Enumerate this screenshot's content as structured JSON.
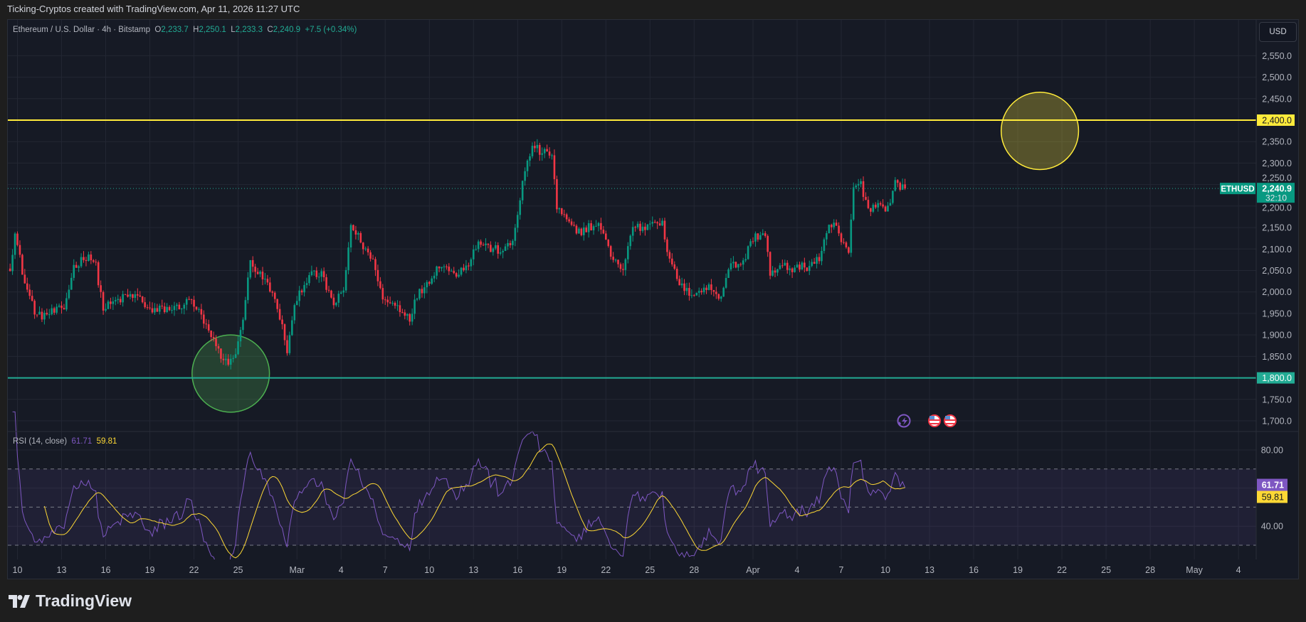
{
  "caption": "Ticking-Cryptos created with TradingView.com, Apr 11, 2026 11:27 UTC",
  "legend": {
    "symbol": "Ethereum / U.S. Dollar · 4h · Bitstamp",
    "o_label": "O",
    "open": "2,233.7",
    "h_label": "H",
    "high": "2,250.1",
    "l_label": "L",
    "low": "2,233.3",
    "c_label": "C",
    "close": "2,240.9",
    "change": "+7.5 (+0.34%)"
  },
  "currency": "USD",
  "price_tag": {
    "symbol": "ETHUSD",
    "price": "2,240.9",
    "countdown": "32:10"
  },
  "levels": [
    {
      "label": "2,400.0",
      "value": 2400,
      "color": "#ffeb3b"
    },
    {
      "label": "1,800.0",
      "value": 1800,
      "color": "#22ab94"
    }
  ],
  "rsi_legend": {
    "name": "RSI (14, close)",
    "rsi": "61.71",
    "ma": "59.81"
  },
  "rsi_tags": {
    "rsi": "61.71",
    "ma": "59.81"
  },
  "brand": "TradingView",
  "colors": {
    "up": "#089981",
    "down": "#f23645",
    "rsi": "#7e57c2",
    "rsi_ma": "#fdd835",
    "background": "#161a25"
  },
  "event_icons": [
    "lightning-icon",
    "us-flag-icon",
    "us-flag-icon"
  ],
  "chart_data": {
    "type": "candlestick",
    "timeframe": "4h",
    "price_range": [
      1675,
      2585
    ],
    "price_ticks": [
      "1,700.0",
      "1,750.0",
      "1,800.0",
      "1,850.0",
      "1,900.0",
      "1,950.0",
      "2,000.0",
      "2,050.0",
      "2,100.0",
      "2,150.0",
      "2,200.0",
      "2,250.0",
      "2,300.0",
      "2,350.0",
      "2,400.0",
      "2,450.0",
      "2,500.0",
      "2,550.0"
    ],
    "rsi_ticks": [
      "80.00",
      "40.00"
    ],
    "rsi_bands": [
      70,
      50,
      30
    ],
    "time_ticks": [
      [
        "2026-02-10",
        "10"
      ],
      [
        "2026-02-13",
        "13"
      ],
      [
        "2026-02-16",
        "16"
      ],
      [
        "2026-02-19",
        "19"
      ],
      [
        "2026-02-22",
        "22"
      ],
      [
        "2026-02-25",
        "25"
      ],
      [
        "2026-03-01",
        "Mar"
      ],
      [
        "2026-03-04",
        "4"
      ],
      [
        "2026-03-07",
        "7"
      ],
      [
        "2026-03-10",
        "10"
      ],
      [
        "2026-03-13",
        "13"
      ],
      [
        "2026-03-16",
        "16"
      ],
      [
        "2026-03-19",
        "19"
      ],
      [
        "2026-03-22",
        "22"
      ],
      [
        "2026-03-25",
        "25"
      ],
      [
        "2026-03-28",
        "28"
      ],
      [
        "2026-04-01",
        "Apr"
      ],
      [
        "2026-04-04",
        "4"
      ],
      [
        "2026-04-07",
        "7"
      ],
      [
        "2026-04-10",
        "10"
      ],
      [
        "2026-04-13",
        "13"
      ],
      [
        "2026-04-16",
        "16"
      ],
      [
        "2026-04-19",
        "19"
      ],
      [
        "2026-04-22",
        "22"
      ],
      [
        "2026-04-25",
        "25"
      ],
      [
        "2026-04-28",
        "28"
      ],
      [
        "2026-05-01",
        "May"
      ],
      [
        "2026-05-04",
        "4"
      ]
    ],
    "circles": [
      {
        "center_date": "2026-04-20T12",
        "center_price": 2375,
        "radius_price": 90,
        "color": "#ffeb3b"
      },
      {
        "center_date": "2026-02-24T12",
        "center_price": 1810,
        "radius_price": 90,
        "color": "#4caf50"
      }
    ],
    "price_path": [
      [
        "2026-02-09T12",
        2059
      ],
      [
        "2026-02-09T20",
        2135
      ],
      [
        "2026-02-10T12",
        2020
      ],
      [
        "2026-02-11T08",
        1942
      ],
      [
        "2026-02-12T08",
        1952
      ],
      [
        "2026-02-13T04",
        1961
      ],
      [
        "2026-02-13T20",
        2059
      ],
      [
        "2026-02-14T20",
        2088
      ],
      [
        "2026-02-15T08",
        2059
      ],
      [
        "2026-02-15T20",
        1961
      ],
      [
        "2026-02-16T20",
        1981
      ],
      [
        "2026-02-17T12",
        1990
      ],
      [
        "2026-02-18T04",
        1990
      ],
      [
        "2026-02-19T04",
        1952
      ],
      [
        "2026-02-19T20",
        1961
      ],
      [
        "2026-02-20T16",
        1961
      ],
      [
        "2026-02-21T20",
        1981
      ],
      [
        "2026-02-22T08",
        1952
      ],
      [
        "2026-02-23T08",
        1883
      ],
      [
        "2026-02-24T00",
        1835
      ],
      [
        "2026-02-24T16",
        1844
      ],
      [
        "2026-02-25T04",
        1903
      ],
      [
        "2026-02-25T20",
        2069
      ],
      [
        "2026-02-26T12",
        2039
      ],
      [
        "2026-02-27T04",
        2010
      ],
      [
        "2026-02-27T20",
        1942
      ],
      [
        "2026-02-28T08",
        1864
      ],
      [
        "2026-03-01T00",
        1990
      ],
      [
        "2026-03-01T20",
        2039
      ],
      [
        "2026-03-02T16",
        2039
      ],
      [
        "2026-03-03T12",
        1971
      ],
      [
        "2026-03-04T04",
        2000
      ],
      [
        "2026-03-04T16",
        2156
      ],
      [
        "2026-03-05T12",
        2108
      ],
      [
        "2026-03-06T08",
        2059
      ],
      [
        "2026-03-06T20",
        1981
      ],
      [
        "2026-03-07T16",
        1971
      ],
      [
        "2026-03-08T16",
        1942
      ],
      [
        "2026-03-09T04",
        1990
      ],
      [
        "2026-03-10T00",
        2030
      ],
      [
        "2026-03-10T20",
        2069
      ],
      [
        "2026-03-11T16",
        2039
      ],
      [
        "2026-03-12T16",
        2069
      ],
      [
        "2026-03-13T08",
        2117
      ],
      [
        "2026-03-14T08",
        2098
      ],
      [
        "2026-03-15T04",
        2098
      ],
      [
        "2026-03-15T16",
        2117
      ],
      [
        "2026-03-16T08",
        2254
      ],
      [
        "2026-03-17T00",
        2342
      ],
      [
        "2026-03-17T16",
        2322
      ],
      [
        "2026-03-18T08",
        2322
      ],
      [
        "2026-03-18T16",
        2195
      ],
      [
        "2026-03-19T08",
        2166
      ],
      [
        "2026-03-20T00",
        2137
      ],
      [
        "2026-03-20T20",
        2152
      ],
      [
        "2026-03-21T16",
        2152
      ],
      [
        "2026-03-22T04",
        2098
      ],
      [
        "2026-03-23T04",
        2049
      ],
      [
        "2026-03-23T20",
        2156
      ],
      [
        "2026-03-24T12",
        2147
      ],
      [
        "2026-03-25T08",
        2172
      ],
      [
        "2026-03-25T20",
        2156
      ],
      [
        "2026-03-26T08",
        2069
      ],
      [
        "2026-03-27T08",
        2000
      ],
      [
        "2026-03-28T04",
        2000
      ],
      [
        "2026-03-29T00",
        2010
      ],
      [
        "2026-03-29T20",
        1990
      ],
      [
        "2026-03-30T08",
        2059
      ],
      [
        "2026-03-31T08",
        2069
      ],
      [
        "2026-04-01T00",
        2127
      ],
      [
        "2026-04-01T20",
        2137
      ],
      [
        "2026-04-02T04",
        2039
      ],
      [
        "2026-04-03T00",
        2059
      ],
      [
        "2026-04-03T20",
        2055
      ],
      [
        "2026-04-04T16",
        2059
      ],
      [
        "2026-04-05T12",
        2078
      ],
      [
        "2026-04-06T04",
        2147
      ],
      [
        "2026-04-06T16",
        2156
      ],
      [
        "2026-04-07T00",
        2117
      ],
      [
        "2026-04-07T12",
        2088
      ],
      [
        "2026-04-07T20",
        2244
      ],
      [
        "2026-04-08T08",
        2250
      ],
      [
        "2026-04-08T20",
        2195
      ],
      [
        "2026-04-09T16",
        2205
      ],
      [
        "2026-04-10T04",
        2195
      ],
      [
        "2026-04-10T16",
        2254
      ],
      [
        "2026-04-11T08",
        2240.9
      ]
    ],
    "last_close": 2240.9,
    "rsi_last": 61.71,
    "rsi_ma_last": 59.81
  }
}
